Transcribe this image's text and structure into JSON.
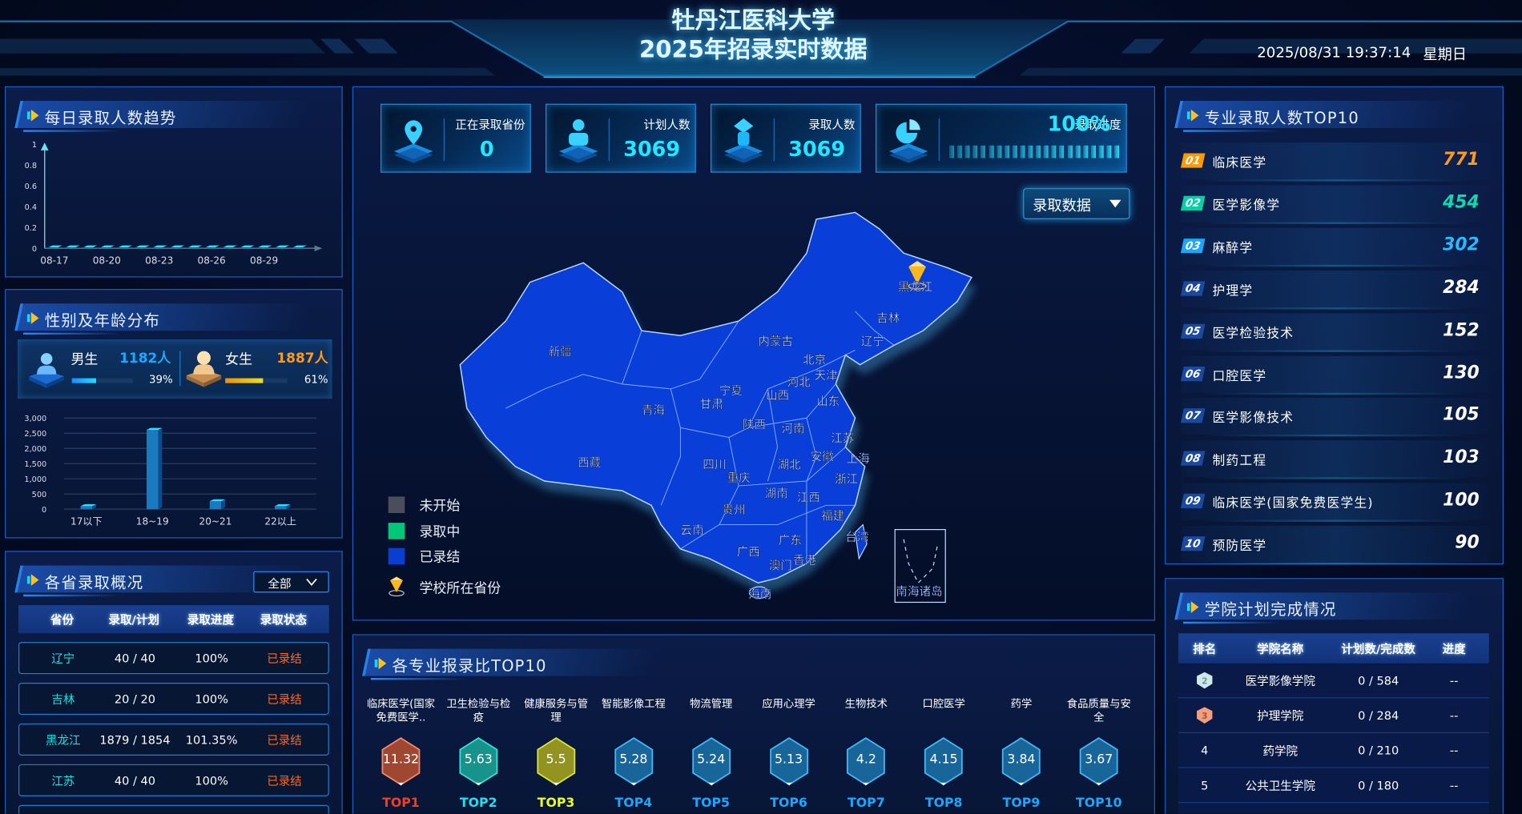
{
  "header": {
    "title_line1": "牡丹江医科大学",
    "title_line2": "2025年招录实时数据",
    "datetime": "2025/08/31 19:37:14",
    "weekday": "星期日"
  },
  "daily_trend": {
    "title": "每日录取人数趋势",
    "chart_data": {
      "type": "line",
      "x": [
        "08-17",
        "08-18",
        "08-19",
        "08-20",
        "08-21",
        "08-22",
        "08-23",
        "08-24",
        "08-25",
        "08-26",
        "08-27",
        "08-28",
        "08-29",
        "08-30",
        "08-31"
      ],
      "values": [
        0,
        0,
        0,
        0,
        0,
        0,
        0,
        0,
        0,
        0,
        0,
        0,
        0,
        0,
        0
      ],
      "x_tick_labels": [
        "08-17",
        "08-20",
        "08-23",
        "08-26",
        "08-29"
      ],
      "y_ticks": [
        "0",
        "0.2",
        "0.4",
        "0.6",
        "0.8",
        "1"
      ],
      "ylim": [
        0,
        1
      ],
      "grid": false
    }
  },
  "gender_age": {
    "title": "性别及年龄分布",
    "male": {
      "label": "男生",
      "count": "1182人",
      "percent_text": "39%",
      "percent": 39
    },
    "female": {
      "label": "女生",
      "count": "1887人",
      "percent_text": "61%",
      "percent": 61
    },
    "chart_data": {
      "type": "bar",
      "categories": [
        "17以下",
        "18~19",
        "20~21",
        "22以上"
      ],
      "values": [
        100,
        2610,
        260,
        99
      ],
      "y_ticks": [
        "0",
        "500",
        "1,000",
        "1,500",
        "2,000",
        "2,500",
        "3,000"
      ],
      "ylim": [
        0,
        3000
      ],
      "grid": true
    }
  },
  "province_overview": {
    "title": "各省录取概况",
    "filter": "全部",
    "columns": [
      "省份",
      "录取/计划",
      "录取进度",
      "录取状态"
    ],
    "rows": [
      {
        "province": "辽宁",
        "ratio": "40 / 40",
        "progress": "100%",
        "status": "已录结"
      },
      {
        "province": "吉林",
        "ratio": "20 / 20",
        "progress": "100%",
        "status": "已录结"
      },
      {
        "province": "黑龙江",
        "ratio": "1879 / 1854",
        "progress": "101.35%",
        "status": "已录结"
      },
      {
        "province": "江苏",
        "ratio": "40 / 40",
        "progress": "100%",
        "status": "已录结"
      }
    ]
  },
  "kpis": [
    {
      "label": "正在录取省份",
      "value": "0",
      "icon": "location-pin-icon"
    },
    {
      "label": "计划人数",
      "value": "3069",
      "icon": "person-icon"
    },
    {
      "label": "录取人数",
      "value": "3069",
      "icon": "graduation-cap-icon"
    },
    {
      "label": "录取进度",
      "value": "100%",
      "progress": 100,
      "icon": "pie-chart-icon"
    }
  ],
  "map": {
    "selector": "录取数据",
    "legend": [
      {
        "label": "未开始",
        "color": "#4a4e5c"
      },
      {
        "label": "录取中",
        "color": "#00c878"
      },
      {
        "label": "已录结",
        "color": "#0a3ed0"
      },
      {
        "label": "学校所在省份",
        "icon": "school-pin-icon"
      }
    ],
    "fill_color": "#0a3ed8",
    "labels": [
      "新疆",
      "西藏",
      "青海",
      "甘肃",
      "内蒙古",
      "黑龙江",
      "吉林",
      "辽宁",
      "北京",
      "天津",
      "河北",
      "山西",
      "宁夏",
      "山东",
      "陕西",
      "河南",
      "江苏",
      "安徽",
      "上海",
      "四川",
      "湖北",
      "重庆",
      "浙江",
      "湖南",
      "江西",
      "贵州",
      "福建",
      "云南",
      "广西",
      "广东",
      "台湾",
      "澳门",
      "香港",
      "海南",
      "南海诸岛"
    ]
  },
  "ratio_top10": {
    "title": "各专业报录比TOP10",
    "items": [
      {
        "name": "临床医学(国家免费医学..",
        "value": "11.32",
        "rank": "TOP1"
      },
      {
        "name": "卫生检验与检疫",
        "value": "5.63",
        "rank": "TOP2"
      },
      {
        "name": "健康服务与管理",
        "value": "5.5",
        "rank": "TOP3"
      },
      {
        "name": "智能影像工程",
        "value": "5.28",
        "rank": "TOP4"
      },
      {
        "name": "物流管理",
        "value": "5.24",
        "rank": "TOP5"
      },
      {
        "name": "应用心理学",
        "value": "5.13",
        "rank": "TOP6"
      },
      {
        "name": "生物技术",
        "value": "4.2",
        "rank": "TOP7"
      },
      {
        "name": "口腔医学",
        "value": "4.15",
        "rank": "TOP8"
      },
      {
        "name": "药学",
        "value": "3.84",
        "rank": "TOP9"
      },
      {
        "name": "食品质量与安全",
        "value": "3.67",
        "rank": "TOP10"
      }
    ],
    "colors": {
      "top1": "#ff3a1a",
      "top2": "#20e0f0",
      "top3": "#e8ff1a",
      "rest": "#1aa8ff"
    }
  },
  "major_top10": {
    "title": "专业录取人数TOP10",
    "items": [
      {
        "rank": "01",
        "name": "临床医学",
        "value": "771"
      },
      {
        "rank": "02",
        "name": "医学影像学",
        "value": "454"
      },
      {
        "rank": "03",
        "name": "麻醉学",
        "value": "302"
      },
      {
        "rank": "04",
        "name": "护理学",
        "value": "284"
      },
      {
        "rank": "05",
        "name": "医学检验技术",
        "value": "152"
      },
      {
        "rank": "06",
        "name": "口腔医学",
        "value": "130"
      },
      {
        "rank": "07",
        "name": "医学影像技术",
        "value": "105"
      },
      {
        "rank": "08",
        "name": "制药工程",
        "value": "103"
      },
      {
        "rank": "09",
        "name": "临床医学(国家免费医学生)",
        "value": "100"
      },
      {
        "rank": "10",
        "name": "预防医学",
        "value": "90"
      }
    ]
  },
  "college_plan": {
    "title": "学院计划完成情况",
    "columns": [
      "排名",
      "学院名称",
      "计划数/完成数",
      "进度"
    ],
    "rows": [
      {
        "rank": "2",
        "medal": "silver-medal-icon",
        "name": "医学影像学院",
        "ratio": "0 / 584",
        "progress": "--"
      },
      {
        "rank": "3",
        "medal": "bronze-medal-icon",
        "name": "护理学院",
        "ratio": "0 / 284",
        "progress": "--"
      },
      {
        "rank": "4",
        "name": "药学院",
        "ratio": "0 / 210",
        "progress": "--"
      },
      {
        "rank": "5",
        "name": "公共卫生学院",
        "ratio": "0 / 180",
        "progress": "--"
      }
    ]
  }
}
